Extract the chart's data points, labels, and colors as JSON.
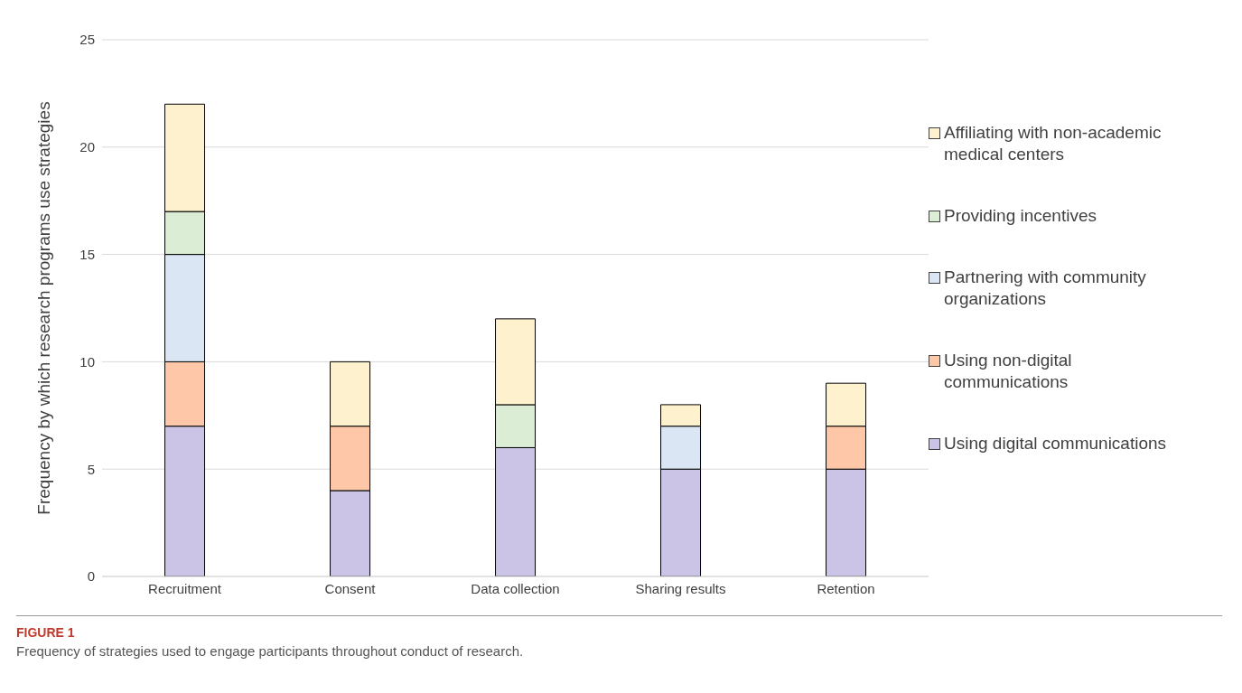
{
  "chart_data": {
    "type": "bar",
    "stacked": true,
    "ylabel": "Frequency by which research programs use strategies",
    "categories": [
      "Recruitment",
      "Consent",
      "Data collection",
      "Sharing results",
      "Retention"
    ],
    "series": [
      {
        "name": "Using digital communications",
        "color": "#ccc4e6",
        "values": [
          7,
          4,
          6,
          5,
          5
        ]
      },
      {
        "name": "Using non-digital communications",
        "color": "#fec8a8",
        "values": [
          3,
          3,
          0,
          0,
          2
        ]
      },
      {
        "name": "Partnering with community organizations",
        "color": "#dae6f4",
        "values": [
          5,
          0,
          0,
          2,
          0
        ]
      },
      {
        "name": "Providing incentives",
        "color": "#dcedd6",
        "values": [
          2,
          0,
          2,
          0,
          0
        ]
      },
      {
        "name": "Affiliating with non-academic medical centers",
        "color": "#fef1cd",
        "values": [
          5,
          3,
          4,
          1,
          2
        ]
      }
    ],
    "ylim": [
      0,
      25
    ],
    "yticks": [
      0,
      5,
      10,
      15,
      20,
      25
    ],
    "grid": "y",
    "legend": "right",
    "annotations": [
      "FIGURE 1",
      "Frequency of strategies used to engage participants throughout conduct of research."
    ]
  }
}
